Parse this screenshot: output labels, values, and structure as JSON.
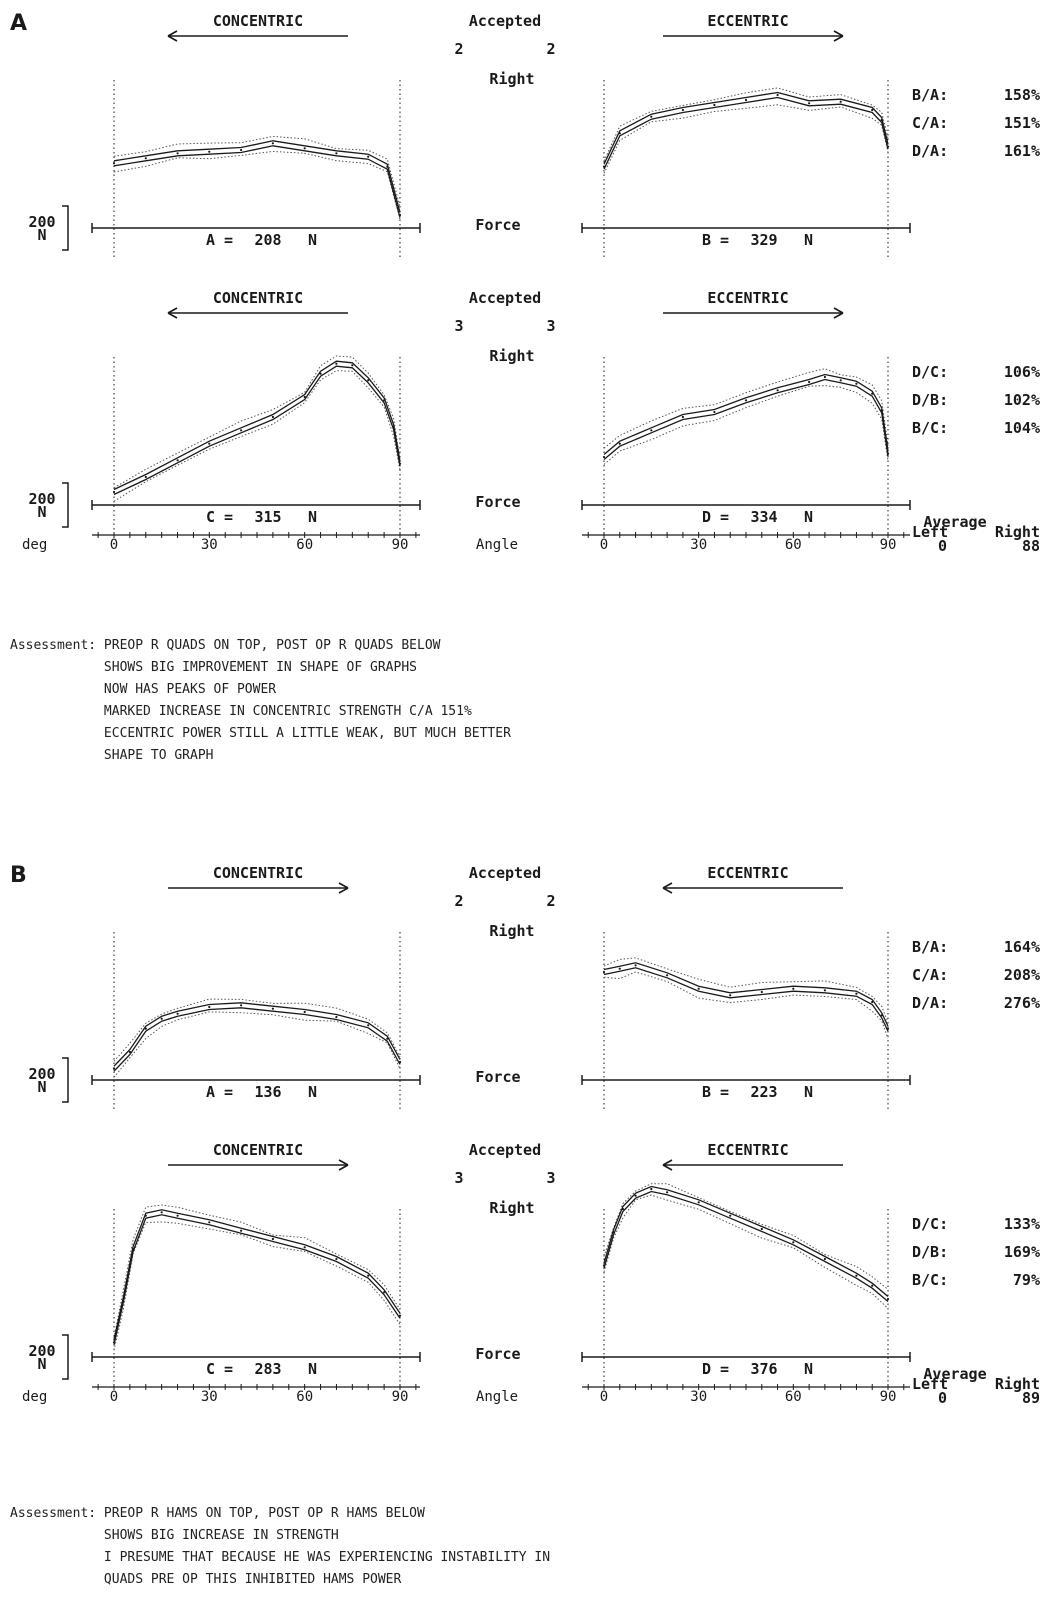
{
  "panels": [
    {
      "letter": "A",
      "rows": [
        {
          "left_header": "CONCENTRIC",
          "right_header": "ECCENTRIC",
          "arrows": {
            "left": "left",
            "right": "right"
          },
          "center": {
            "accepted": "Accepted",
            "count_left": "2",
            "count_right": "2",
            "side": "Right",
            "force": "Force"
          },
          "scale_label": "200\nN",
          "ratios": [
            {
              "name": "B/A:",
              "value": "158%"
            },
            {
              "name": "C/A:",
              "value": "151%"
            },
            {
              "name": "D/A:",
              "value": "161%"
            }
          ]
        },
        {
          "left_header": "CONCENTRIC",
          "right_header": "ECCENTRIC",
          "arrows": {
            "left": "left",
            "right": "right"
          },
          "center": {
            "accepted": "Accepted",
            "count_left": "3",
            "count_right": "3",
            "side": "Right",
            "force": "Force",
            "angle": "Angle"
          },
          "scale_label": "200\nN",
          "deg": "deg",
          "ratios": [
            {
              "name": "D/C:",
              "value": "106%"
            },
            {
              "name": "D/B:",
              "value": "102%"
            },
            {
              "name": "B/C:",
              "value": "104%"
            }
          ],
          "average": {
            "title": "Average",
            "left": "Left",
            "right": "Right",
            "left_value": "0",
            "right_value": "88"
          }
        }
      ],
      "assessment_label": "Assessment:",
      "assessment": [
        "PREOP R QUADS ON TOP, POST OP R QUADS BELOW",
        "SHOWS BIG IMPROVEMENT IN SHAPE OF GRAPHS",
        "NOW HAS PEAKS OF POWER",
        "MARKED INCREASE IN CONCENTRIC STRENGTH C/A 151%",
        "ECCENTRIC POWER STILL A LITTLE WEAK, BUT MUCH BETTER",
        "SHAPE TO GRAPH"
      ]
    },
    {
      "letter": "B",
      "rows": [
        {
          "left_header": "CONCENTRIC",
          "right_header": "ECCENTRIC",
          "arrows": {
            "left": "right",
            "right": "left"
          },
          "center": {
            "accepted": "Accepted",
            "count_left": "2",
            "count_right": "2",
            "side": "Right",
            "force": "Force"
          },
          "scale_label": "200\nN",
          "ratios": [
            {
              "name": "B/A:",
              "value": "164%"
            },
            {
              "name": "C/A:",
              "value": "208%"
            },
            {
              "name": "D/A:",
              "value": "276%"
            }
          ]
        },
        {
          "left_header": "CONCENTRIC",
          "right_header": "ECCENTRIC",
          "arrows": {
            "left": "right",
            "right": "left"
          },
          "center": {
            "accepted": "Accepted",
            "count_left": "3",
            "count_right": "3",
            "side": "Right",
            "force": "Force",
            "angle": "Angle"
          },
          "scale_label": "200\nN",
          "deg": "deg",
          "ratios": [
            {
              "name": "D/C:",
              "value": "133%"
            },
            {
              "name": "D/B:",
              "value": "169%"
            },
            {
              "name": "B/C:",
              "value": "79%"
            }
          ],
          "average": {
            "title": "Average",
            "left": "Left",
            "right": "Right",
            "left_value": "0",
            "right_value": "89"
          }
        }
      ],
      "assessment_label": "Assessment:",
      "assessment": [
        "PREOP R HAMS ON TOP, POST OP R HAMS BELOW",
        "SHOWS BIG INCREASE IN STRENGTH",
        "I PRESUME THAT BECAUSE HE WAS EXPERIENCING INSTABILITY IN",
        "QUADS PRE OP THIS INHIBITED HAMS POWER"
      ]
    }
  ],
  "chart_data": [
    {
      "type": "line",
      "panel": "A",
      "plot": "A",
      "mode": "CONCENTRIC",
      "summary_label": "A =",
      "summary_value": "208",
      "summary_unit": "N",
      "xlim": [
        0,
        90
      ],
      "ylim": [
        0,
        600
      ],
      "x": [
        0,
        10,
        20,
        30,
        40,
        50,
        60,
        70,
        80,
        86,
        90
      ],
      "series": [
        {
          "values": [
            170,
            185,
            200,
            205,
            210,
            230,
            215,
            200,
            190,
            160,
            15
          ]
        }
      ]
    },
    {
      "type": "line",
      "panel": "A",
      "plot": "B",
      "mode": "ECCENTRIC",
      "summary_label": "B =",
      "summary_value": "329",
      "summary_unit": "N",
      "xlim": [
        0,
        90
      ],
      "ylim": [
        0,
        600
      ],
      "x": [
        0,
        5,
        15,
        25,
        35,
        45,
        55,
        65,
        75,
        85,
        88,
        90
      ],
      "series": [
        {
          "values": [
            160,
            260,
            310,
            330,
            345,
            360,
            375,
            350,
            355,
            330,
            300,
            220
          ]
        }
      ]
    },
    {
      "type": "line",
      "panel": "A",
      "plot": "C",
      "mode": "CONCENTRIC",
      "summary_label": "C =",
      "summary_value": "315",
      "summary_unit": "N",
      "xlim": [
        0,
        90
      ],
      "ylim": [
        0,
        600
      ],
      "xticks": [
        0,
        30,
        60,
        90
      ],
      "xlabel": "Angle",
      "x": [
        0,
        10,
        20,
        30,
        40,
        50,
        60,
        65,
        70,
        75,
        80,
        85,
        88,
        90
      ],
      "series": [
        {
          "values": [
            15,
            60,
            110,
            160,
            200,
            240,
            300,
            370,
            400,
            395,
            350,
            290,
            210,
            100
          ]
        }
      ]
    },
    {
      "type": "line",
      "panel": "A",
      "plot": "D",
      "mode": "ECCENTRIC",
      "summary_label": "D =",
      "summary_value": "334",
      "summary_unit": "N",
      "xlim": [
        0,
        90
      ],
      "ylim": [
        0,
        600
      ],
      "xticks": [
        0,
        30,
        60,
        90
      ],
      "xlabel": "Angle",
      "x": [
        0,
        5,
        15,
        25,
        35,
        45,
        55,
        65,
        70,
        75,
        80,
        85,
        88,
        90
      ],
      "series": [
        {
          "values": [
            120,
            160,
            200,
            240,
            255,
            290,
            320,
            345,
            360,
            350,
            340,
            310,
            260,
            130
          ]
        }
      ]
    },
    {
      "type": "line",
      "panel": "B",
      "plot": "A",
      "mode": "CONCENTRIC",
      "summary_label": "A =",
      "summary_value": "136",
      "summary_unit": "N",
      "xlim": [
        0,
        90
      ],
      "ylim": [
        0,
        600
      ],
      "x": [
        0,
        5,
        10,
        15,
        20,
        30,
        40,
        50,
        60,
        70,
        80,
        86,
        90
      ],
      "series": [
        {
          "values": [
            10,
            60,
            130,
            160,
            175,
            195,
            200,
            190,
            180,
            165,
            140,
            100,
            30
          ]
        }
      ]
    },
    {
      "type": "line",
      "panel": "B",
      "plot": "B",
      "mode": "ECCENTRIC",
      "summary_label": "B =",
      "summary_value": "223",
      "summary_unit": "N",
      "xlim": [
        0,
        90
      ],
      "ylim": [
        0,
        600
      ],
      "x": [
        0,
        5,
        10,
        20,
        30,
        40,
        50,
        60,
        70,
        80,
        85,
        88,
        90
      ],
      "series": [
        {
          "values": [
            300,
            310,
            320,
            290,
            250,
            230,
            240,
            250,
            245,
            235,
            210,
            170,
            130
          ]
        }
      ]
    },
    {
      "type": "line",
      "panel": "B",
      "plot": "C",
      "mode": "CONCENTRIC",
      "summary_label": "C =",
      "summary_value": "283",
      "summary_unit": "N",
      "xlim": [
        0,
        90
      ],
      "ylim": [
        0,
        600
      ],
      "xticks": [
        0,
        30,
        60,
        90
      ],
      "xlabel": "Angle",
      "x": [
        0,
        3,
        6,
        10,
        15,
        20,
        30,
        40,
        50,
        60,
        70,
        80,
        85,
        90
      ],
      "series": [
        {
          "values": [
            20,
            150,
            300,
            400,
            410,
            400,
            380,
            355,
            330,
            305,
            270,
            220,
            170,
            100
          ]
        }
      ]
    },
    {
      "type": "line",
      "panel": "B",
      "plot": "D",
      "mode": "ECCENTRIC",
      "summary_label": "D =",
      "summary_value": "376",
      "summary_unit": "N",
      "xlim": [
        0,
        90
      ],
      "ylim": [
        0,
        600
      ],
      "xticks": [
        0,
        30,
        60,
        90
      ],
      "xlabel": "Angle",
      "x": [
        0,
        3,
        6,
        10,
        15,
        20,
        30,
        40,
        50,
        60,
        70,
        80,
        85,
        90
      ],
      "series": [
        {
          "values": [
            250,
            350,
            420,
            460,
            480,
            470,
            440,
            400,
            360,
            320,
            270,
            220,
            190,
            150
          ]
        }
      ]
    }
  ]
}
